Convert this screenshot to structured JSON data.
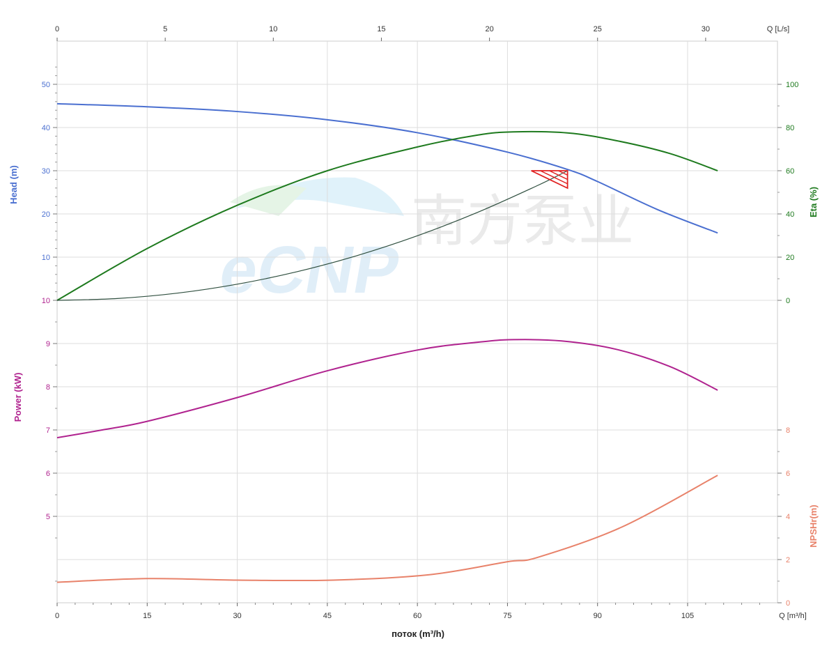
{
  "chart_data": {
    "type": "line",
    "xlabel": "поток (m³/h)",
    "x_unit_label": "Q [m³/h]",
    "x2_unit_label": "Q [L/s]",
    "xlim": [
      0,
      120
    ],
    "x_ticks": [
      0,
      15,
      30,
      45,
      60,
      75,
      90,
      105
    ],
    "x2_ticks": [
      0,
      5,
      10,
      15,
      20,
      25,
      30
    ],
    "grid": true,
    "axes": {
      "head": {
        "label": "Head (m)",
        "ticks": [
          "50",
          "40",
          "30",
          "20",
          "10"
        ],
        "tick_values": [
          50,
          40,
          30,
          20,
          10
        ],
        "color": "#4a6fd0"
      },
      "power": {
        "label": "Power (kW)",
        "ticks": [
          "10",
          "9",
          "8",
          "7",
          "6",
          "5"
        ],
        "tick_values": [
          10,
          9,
          8,
          7,
          6,
          5
        ],
        "color": "#b0238f"
      },
      "eta": {
        "label": "Eta (%)",
        "ticks": [
          "100",
          "80",
          "60",
          "40",
          "20",
          "0"
        ],
        "tick_values": [
          100,
          80,
          60,
          40,
          20,
          0
        ],
        "color": "#1e7a1e"
      },
      "npsh": {
        "label": "NPSHr(m)",
        "ticks": [
          "8",
          "6",
          "4",
          "2",
          "0"
        ],
        "tick_values": [
          8,
          6,
          4,
          2,
          0
        ],
        "color": "#e8826a"
      }
    },
    "series": [
      {
        "key": "head",
        "axis": "head",
        "color": "#4a6fd0",
        "x": [
          0,
          15,
          30,
          45,
          60,
          75,
          85,
          90,
          100,
          110
        ],
        "y": [
          45.5,
          44.8,
          43.7,
          41.8,
          38.8,
          34.3,
          30.3,
          27.5,
          21,
          15.6
        ]
      },
      {
        "key": "eta",
        "axis": "eta",
        "color": "#1e7a1e",
        "x": [
          0,
          15,
          30,
          45,
          60,
          70,
          76,
          85,
          93,
          102,
          110
        ],
        "y": [
          0,
          24,
          44,
          60,
          71,
          76.5,
          78,
          77.5,
          74,
          68,
          60
        ]
      },
      {
        "key": "power",
        "axis": "power",
        "color": "#b0238f",
        "x": [
          0,
          7.5,
          15,
          30,
          45,
          60,
          70,
          76,
          84,
          93,
          102,
          110
        ],
        "y": [
          6.82,
          7.0,
          7.2,
          7.75,
          8.37,
          8.85,
          9.03,
          9.09,
          9.06,
          8.87,
          8.47,
          7.92
        ]
      },
      {
        "key": "npsh",
        "axis": "npsh",
        "color": "#e8826a",
        "x": [
          0,
          15,
          30,
          46,
          62,
          75,
          80,
          94,
          110
        ],
        "y": [
          0.95,
          1.12,
          1.05,
          1.05,
          1.3,
          1.9,
          2.1,
          3.5,
          5.9
        ]
      },
      {
        "key": "system",
        "axis": "head",
        "color": "#2f4f3f",
        "x": [
          0,
          10,
          20,
          30,
          40,
          50,
          60,
          70,
          80,
          85
        ],
        "y": [
          0,
          0.42,
          1.66,
          3.74,
          6.64,
          10.38,
          14.95,
          20.35,
          26.57,
          30
        ]
      }
    ],
    "operating_point": {
      "q": 85,
      "head": 30,
      "color": "#e02020"
    }
  },
  "watermark": {
    "text": "CNP 南方泵业"
  }
}
